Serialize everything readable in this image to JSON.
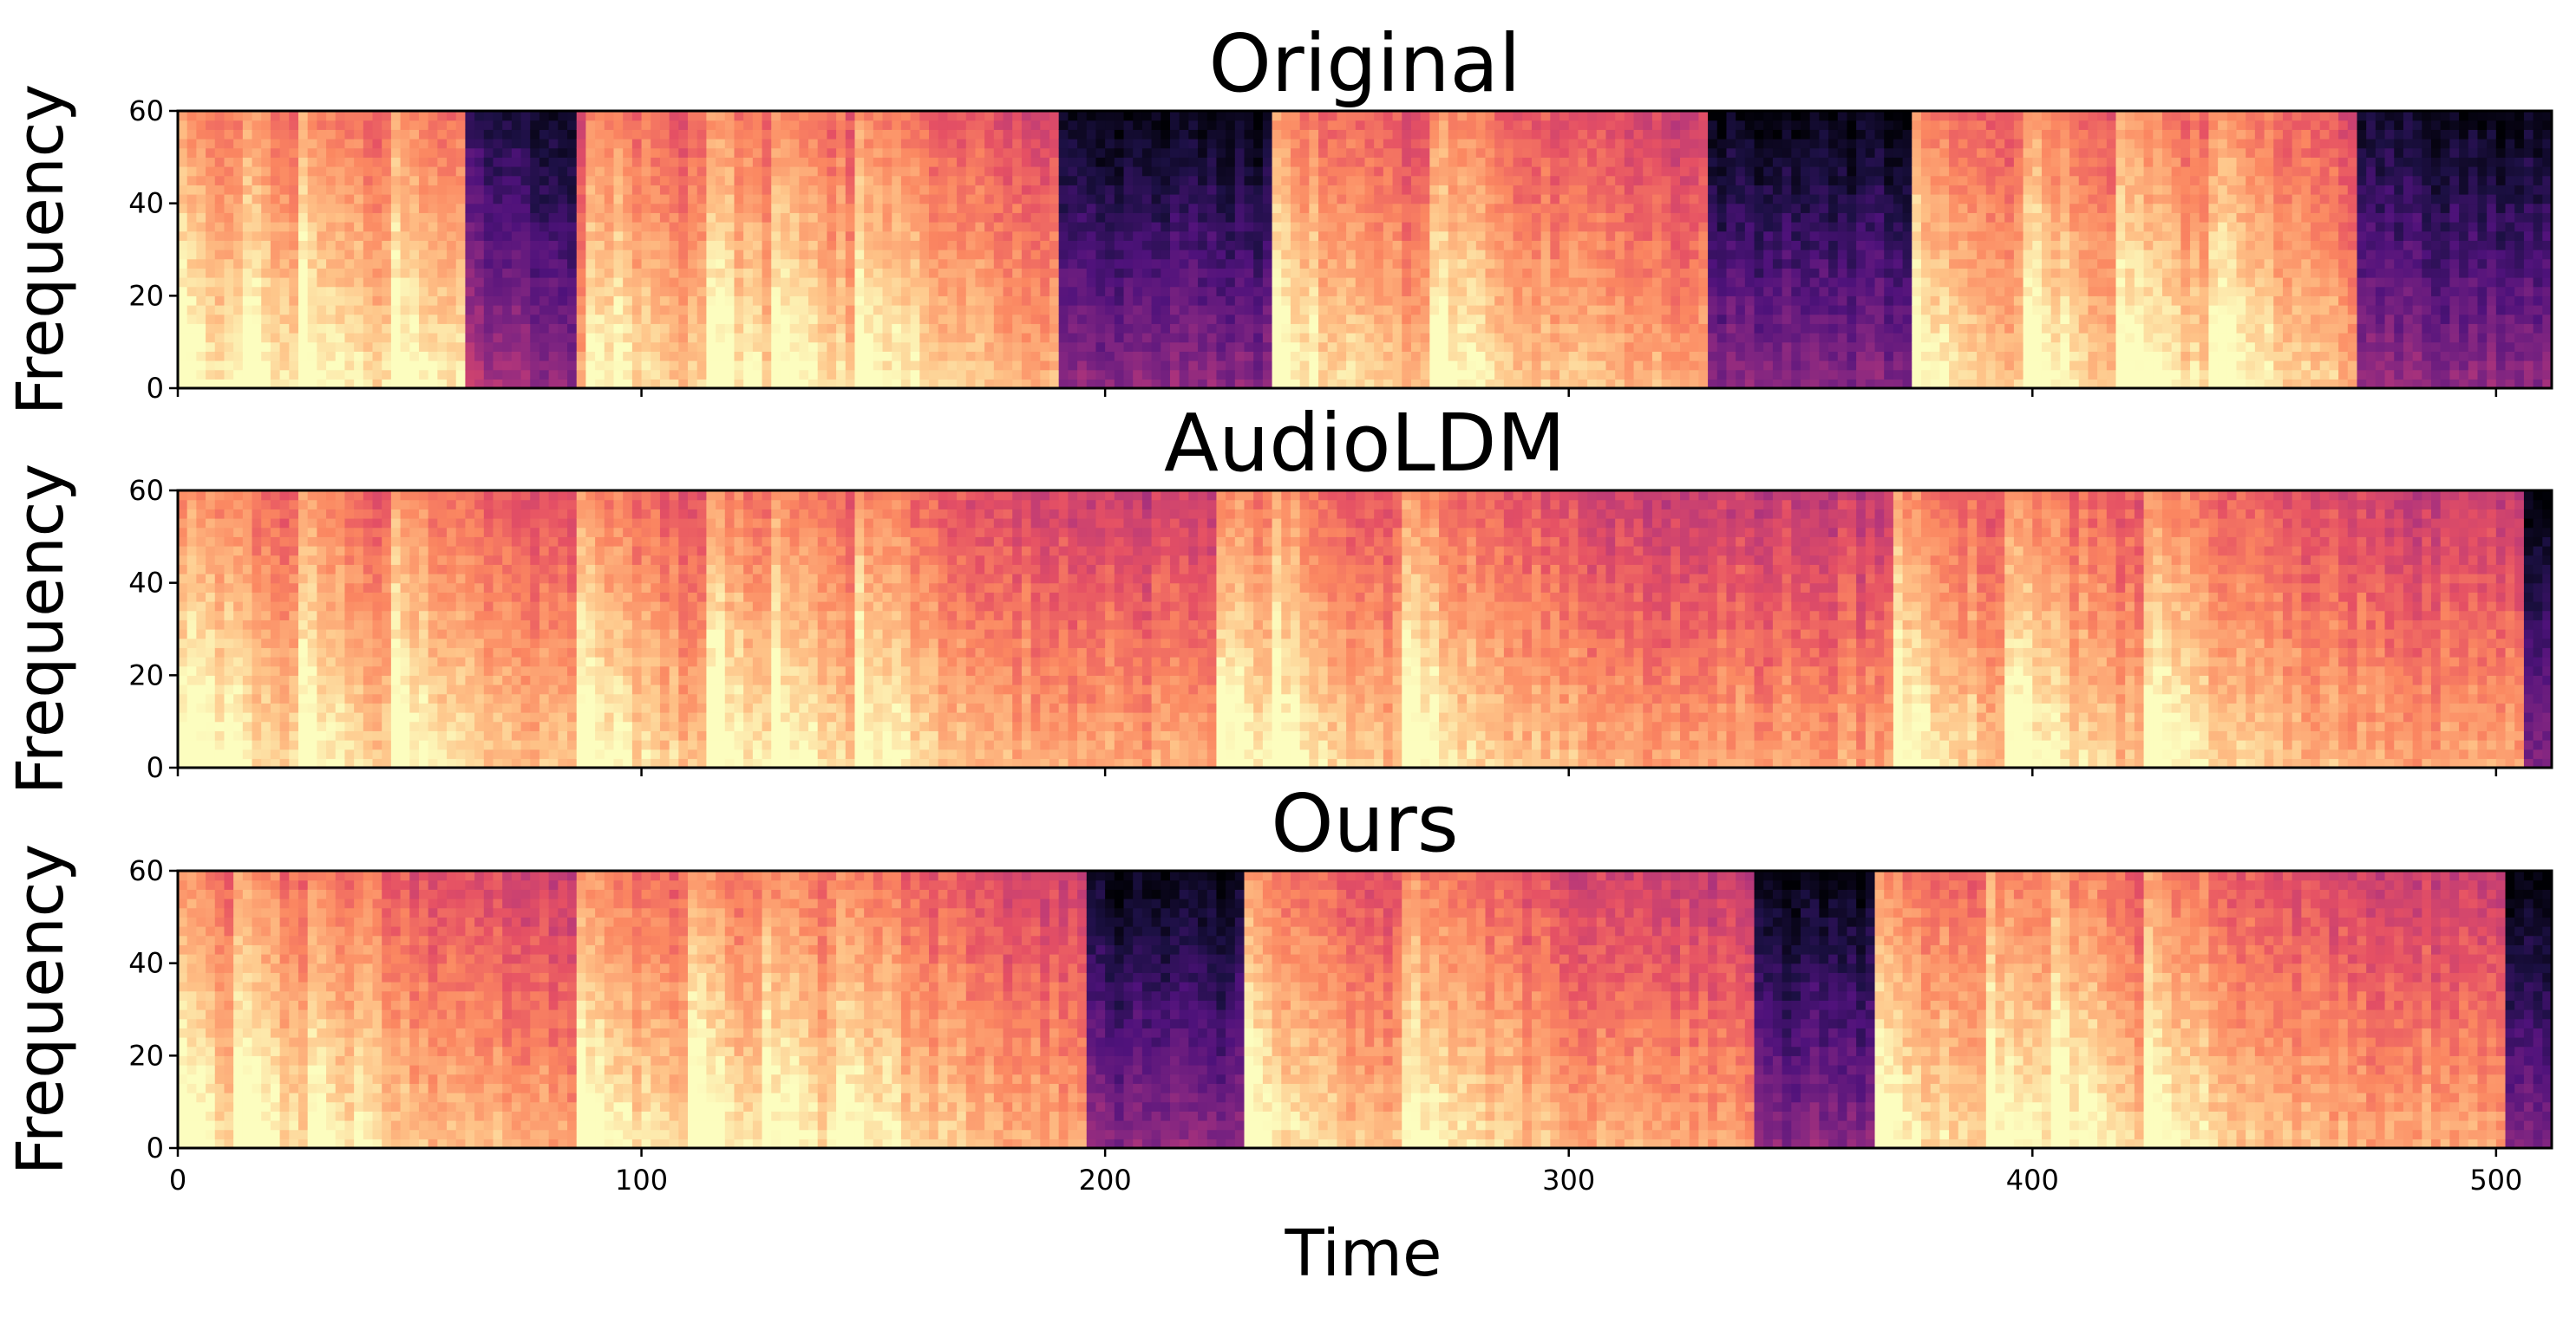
{
  "figure": {
    "xlabel": "Time"
  },
  "chart_data": [
    {
      "type": "heatmap",
      "title": "Original",
      "xlabel": "Time",
      "ylabel": "Frequency",
      "xlim": [
        0,
        512
      ],
      "ylim": [
        0,
        60
      ],
      "xticks": [
        0,
        100,
        200,
        300,
        400,
        500
      ],
      "yticks": [
        0,
        20,
        40,
        60
      ],
      "colormap": "magma",
      "x_tick_labels_shown": false,
      "bright_onsets": [
        0,
        14,
        27,
        47,
        88,
        114,
        128,
        147,
        236,
        270,
        374,
        399,
        419,
        439
      ],
      "dark_regions": [
        [
          63,
          86
        ],
        [
          190,
          236
        ],
        [
          330,
          374
        ],
        [
          470,
          512
        ]
      ]
    },
    {
      "type": "heatmap",
      "title": "AudioLDM",
      "xlabel": "Time",
      "ylabel": "Frequency",
      "xlim": [
        0,
        512
      ],
      "ylim": [
        0,
        60
      ],
      "xticks": [
        0,
        100,
        200,
        300,
        400,
        500
      ],
      "yticks": [
        0,
        20,
        40,
        60
      ],
      "colormap": "magma",
      "x_tick_labels_shown": false,
      "bright_onsets": [
        0,
        5,
        26,
        46,
        87,
        115,
        128,
        146,
        224,
        236,
        265,
        370,
        394,
        425
      ],
      "dark_regions": [
        [
          507,
          512
        ]
      ]
    },
    {
      "type": "heatmap",
      "title": "Ours",
      "xlabel": "Time",
      "ylabel": "Frequency",
      "xlim": [
        0,
        512
      ],
      "ylim": [
        0,
        60
      ],
      "xticks": [
        0,
        100,
        200,
        300,
        400,
        500
      ],
      "yticks": [
        0,
        20,
        40,
        60
      ],
      "colormap": "magma",
      "x_tick_labels_shown": true,
      "bright_onsets": [
        0,
        12,
        28,
        87,
        110,
        126,
        143,
        230,
        264,
        366,
        390,
        405,
        425
      ],
      "dark_regions": [
        [
          196,
          230
        ],
        [
          340,
          366
        ],
        [
          502,
          512
        ]
      ]
    }
  ]
}
